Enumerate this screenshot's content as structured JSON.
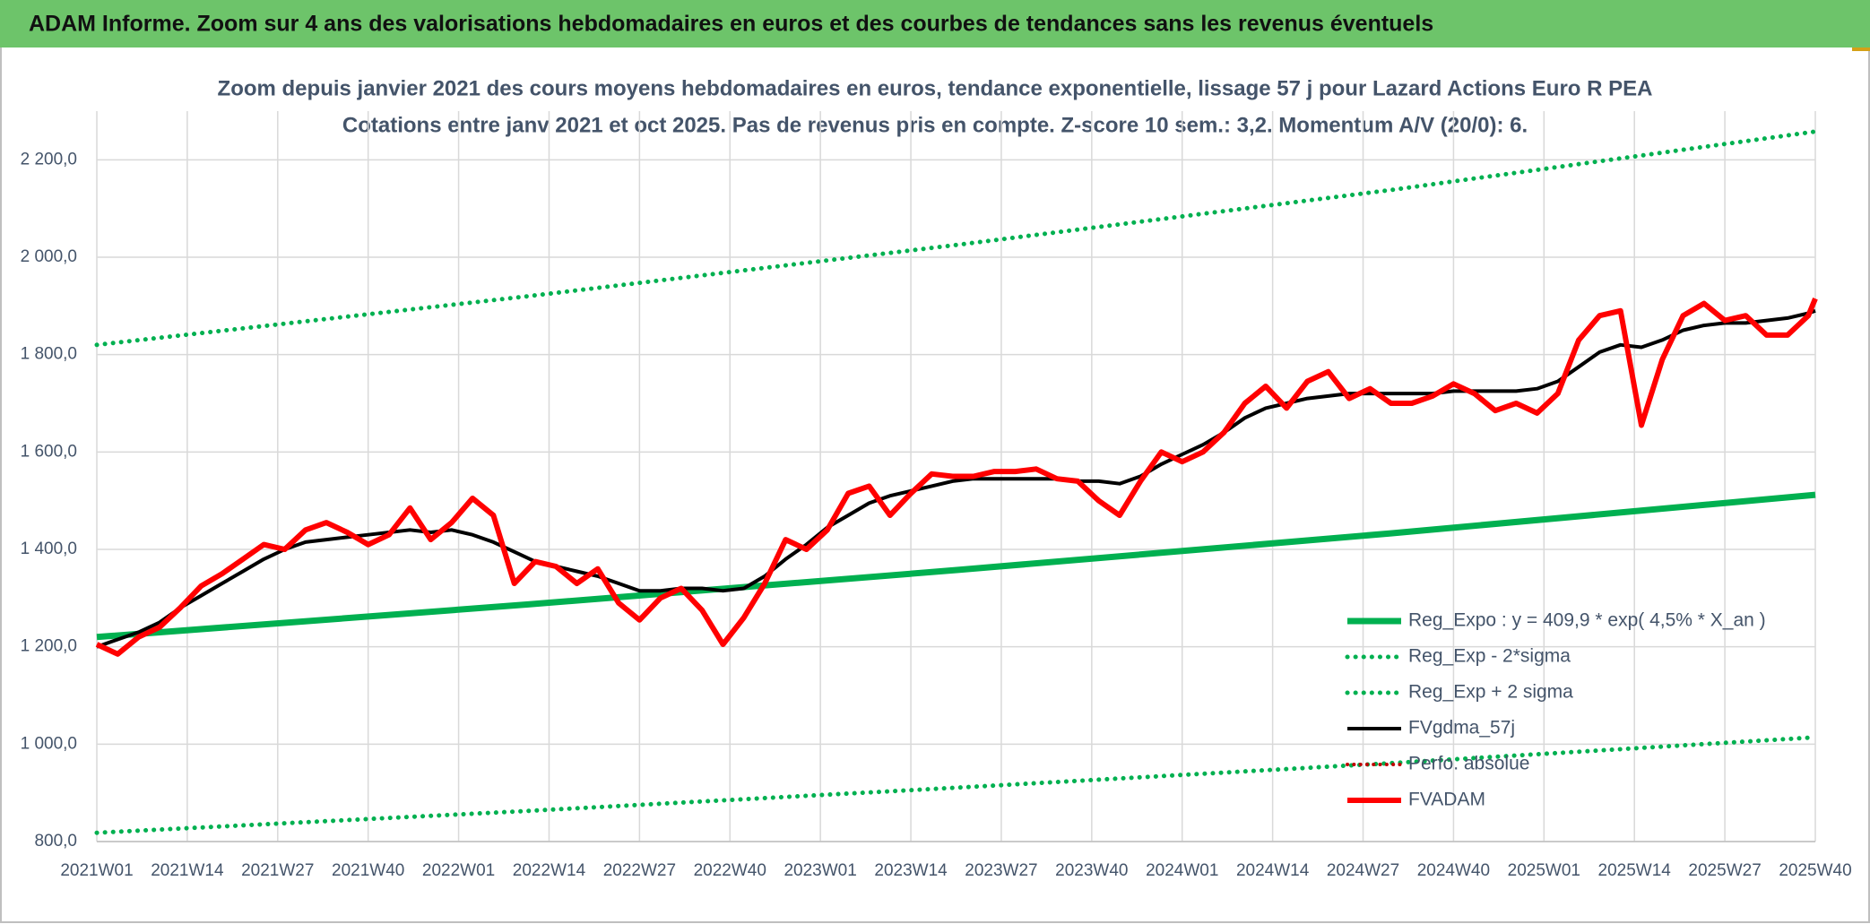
{
  "banner": "ADAM Informe. Zoom sur 4 ans des valorisations hebdomadaires en euros et des courbes de tendances sans les revenus éventuels",
  "chart_data": {
    "type": "line",
    "title": "Zoom depuis janvier 2021 des cours moyens hebdomadaires en euros, tendance exponentielle, lissage 57 j pour Lazard Actions Euro R PEA",
    "subtitle": "Cotations entre janv 2021 et oct 2025. Pas de revenus pris en compte. Z-score 10 sem.: 3,2. Momentum A/V (20/0): 6.",
    "xlim": [
      0,
      247
    ],
    "xticks": [
      {
        "value": 0,
        "label": "2021W01"
      },
      {
        "value": 13,
        "label": "2021W14"
      },
      {
        "value": 26,
        "label": "2021W27"
      },
      {
        "value": 39,
        "label": "2021W40"
      },
      {
        "value": 52,
        "label": "2022W01"
      },
      {
        "value": 65,
        "label": "2022W14"
      },
      {
        "value": 78,
        "label": "2022W27"
      },
      {
        "value": 91,
        "label": "2022W40"
      },
      {
        "value": 104,
        "label": "2023W01"
      },
      {
        "value": 117,
        "label": "2023W14"
      },
      {
        "value": 130,
        "label": "2023W27"
      },
      {
        "value": 143,
        "label": "2023W40"
      },
      {
        "value": 156,
        "label": "2024W01"
      },
      {
        "value": 169,
        "label": "2024W14"
      },
      {
        "value": 182,
        "label": "2024W27"
      },
      {
        "value": 195,
        "label": "2024W40"
      },
      {
        "value": 208,
        "label": "2025W01"
      },
      {
        "value": 221,
        "label": "2025W14"
      },
      {
        "value": 234,
        "label": "2025W27"
      },
      {
        "value": 247,
        "label": "2025W40"
      }
    ],
    "ylim": [
      800,
      2300
    ],
    "yticks": [
      {
        "value": 800,
        "label": "800,0"
      },
      {
        "value": 1000,
        "label": "1 000,0"
      },
      {
        "value": 1200,
        "label": "1 200,0"
      },
      {
        "value": 1400,
        "label": "1 400,0"
      },
      {
        "value": 1600,
        "label": "1 600,0"
      },
      {
        "value": 1800,
        "label": "1 800,0"
      },
      {
        "value": 2000,
        "label": "2 000,0"
      },
      {
        "value": 2200,
        "label": "2 200,0"
      }
    ],
    "grid": true,
    "legend": "lower right",
    "series": [
      {
        "name": "Reg_Expo : y = 409,9 * exp( 4,5% *  X_an )",
        "color": "#00b050",
        "style": "solid",
        "width": 7,
        "x": [
          0,
          62,
          124,
          186,
          247
        ],
        "values": [
          1220,
          1287,
          1358,
          1433,
          1512
        ]
      },
      {
        "name": "Reg_Exp - 2*sigma",
        "color": "#00b050",
        "style": "dotted",
        "width": 5,
        "x": [
          0,
          62,
          124,
          186,
          247
        ],
        "values": [
          818,
          863,
          911,
          961,
          1014
        ]
      },
      {
        "name": "Reg_Exp + 2 sigma",
        "color": "#00b050",
        "style": "dotted",
        "width": 5,
        "x": [
          0,
          62,
          124,
          186,
          247
        ],
        "values": [
          1820,
          1920,
          2026,
          2138,
          2258
        ]
      },
      {
        "name": "FVgdma_57j",
        "color": "#000000",
        "style": "solid",
        "width": 4,
        "x": [
          0,
          3,
          6,
          9,
          12,
          15,
          18,
          21,
          24,
          27,
          30,
          33,
          36,
          39,
          42,
          45,
          48,
          51,
          54,
          57,
          60,
          63,
          66,
          69,
          72,
          75,
          78,
          81,
          84,
          87,
          90,
          93,
          96,
          99,
          102,
          105,
          108,
          111,
          114,
          117,
          120,
          123,
          126,
          129,
          132,
          135,
          138,
          141,
          144,
          147,
          150,
          153,
          156,
          159,
          162,
          165,
          168,
          171,
          174,
          177,
          180,
          183,
          186,
          189,
          192,
          195,
          198,
          201,
          204,
          207,
          210,
          213,
          216,
          219,
          222,
          225,
          228,
          231,
          234,
          237,
          240,
          243,
          246,
          247
        ],
        "values": [
          1200,
          1215,
          1230,
          1250,
          1280,
          1305,
          1330,
          1355,
          1380,
          1400,
          1415,
          1420,
          1425,
          1430,
          1435,
          1440,
          1435,
          1440,
          1430,
          1415,
          1395,
          1375,
          1365,
          1355,
          1345,
          1330,
          1315,
          1315,
          1320,
          1320,
          1315,
          1320,
          1345,
          1380,
          1410,
          1445,
          1470,
          1495,
          1510,
          1520,
          1530,
          1540,
          1545,
          1545,
          1545,
          1545,
          1545,
          1540,
          1540,
          1535,
          1550,
          1575,
          1595,
          1615,
          1640,
          1670,
          1690,
          1700,
          1710,
          1715,
          1720,
          1720,
          1720,
          1720,
          1720,
          1725,
          1725,
          1725,
          1725,
          1730,
          1745,
          1775,
          1805,
          1820,
          1815,
          1830,
          1850,
          1860,
          1865,
          1865,
          1870,
          1875,
          1885,
          1890
        ]
      },
      {
        "name": "Perfo. absolue",
        "color": "#c00000",
        "style": "dotted",
        "width": 4,
        "x": [],
        "values": []
      },
      {
        "name": "FVADAM",
        "color": "#ff0000",
        "style": "solid",
        "width": 6,
        "x": [
          0,
          3,
          6,
          9,
          12,
          15,
          18,
          21,
          24,
          27,
          30,
          33,
          36,
          39,
          42,
          45,
          48,
          51,
          54,
          57,
          60,
          63,
          66,
          69,
          72,
          75,
          78,
          81,
          84,
          87,
          90,
          93,
          96,
          99,
          102,
          105,
          108,
          111,
          114,
          117,
          120,
          123,
          126,
          129,
          132,
          135,
          138,
          141,
          144,
          147,
          150,
          153,
          156,
          159,
          162,
          165,
          168,
          171,
          174,
          177,
          180,
          183,
          186,
          189,
          192,
          195,
          198,
          201,
          204,
          207,
          210,
          213,
          216,
          219,
          222,
          225,
          228,
          231,
          234,
          237,
          240,
          243,
          246,
          247
        ],
        "values": [
          1205,
          1185,
          1220,
          1240,
          1280,
          1325,
          1350,
          1380,
          1410,
          1400,
          1440,
          1455,
          1435,
          1410,
          1430,
          1485,
          1420,
          1455,
          1505,
          1470,
          1330,
          1375,
          1365,
          1330,
          1360,
          1290,
          1255,
          1300,
          1320,
          1275,
          1205,
          1260,
          1330,
          1420,
          1400,
          1440,
          1515,
          1530,
          1470,
          1515,
          1555,
          1550,
          1550,
          1560,
          1560,
          1565,
          1545,
          1540,
          1500,
          1470,
          1540,
          1600,
          1580,
          1600,
          1640,
          1700,
          1735,
          1690,
          1745,
          1765,
          1710,
          1730,
          1700,
          1700,
          1715,
          1740,
          1720,
          1685,
          1700,
          1680,
          1720,
          1830,
          1880,
          1890,
          1655,
          1790,
          1880,
          1905,
          1870,
          1880,
          1840,
          1840,
          1880,
          1915
        ]
      }
    ]
  }
}
